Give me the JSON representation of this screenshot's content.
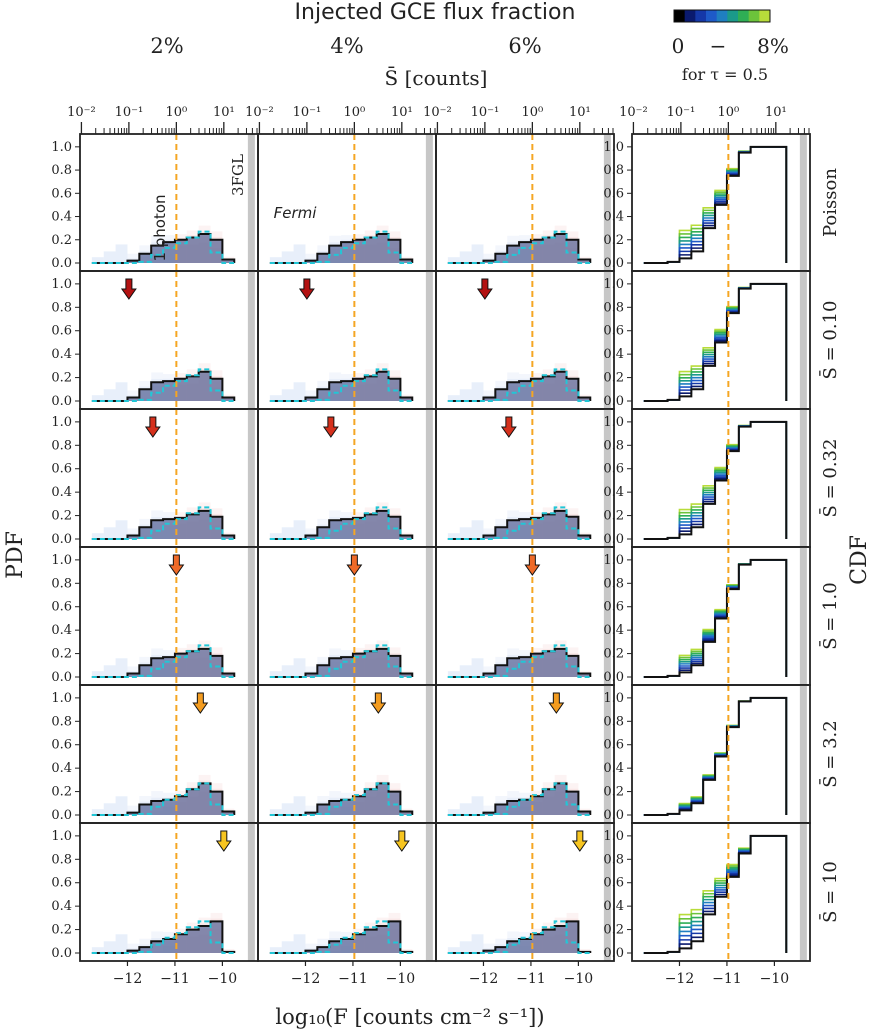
{
  "header": {
    "title": "Injected GCE flux fraction",
    "columns": [
      {
        "label": "2%",
        "color": "#1f3ca0"
      },
      {
        "label": "4%",
        "color": "#2a8a8a"
      },
      {
        "label": "6%",
        "color": "#4caf3a"
      }
    ],
    "colorbar": {
      "min_label": "0",
      "dash": "−",
      "max_label": "8%",
      "note": "for τ = 0.5",
      "colors": [
        "#000000",
        "#0a1a6e",
        "#1538a8",
        "#1e5ac8",
        "#1f7fc0",
        "#1b9a8a",
        "#2fae55",
        "#6cc33b",
        "#b8dc3a"
      ]
    }
  },
  "top_axis": {
    "label": "S̄ [counts]",
    "tick_labels": [
      "10⁻²",
      "10⁻¹",
      "10⁰",
      "10¹"
    ],
    "tick_values": [
      -2,
      -1,
      0,
      1
    ]
  },
  "bottom_axis": {
    "label": "log₁₀(F [counts cm⁻² s⁻¹])",
    "tick_labels": [
      "−12",
      "−11",
      "−10"
    ]
  },
  "left_axis_label": "PDF",
  "right_axis_label": "CDF",
  "annotations": {
    "photon": "1 photon",
    "fgl": "3FGL",
    "fermi": "Fermi"
  },
  "colors": {
    "photon_line": "#f5a623",
    "fermi_line": "#22c6d6",
    "fgl_band": "#bdbdbd",
    "black": "#111111"
  },
  "rows": [
    {
      "label": "Poisson",
      "color": "#111111",
      "s_bar": null
    },
    {
      "label": "S̄ = 0.10",
      "color": "#9e1a1a",
      "s_bar": 0.1,
      "arrow_color": "#b31212"
    },
    {
      "label": "S̄ = 0.32",
      "color": "#c8321e",
      "s_bar": 0.32,
      "arrow_color": "#d5301c"
    },
    {
      "label": "S̄ = 1.0",
      "color": "#e8602a",
      "s_bar": 1.0,
      "arrow_color": "#ef6a28"
    },
    {
      "label": "S̄ = 3.2",
      "color": "#f09a2a",
      "s_bar": 3.2,
      "arrow_color": "#f39c20"
    },
    {
      "label": "S̄ = 10",
      "color": "#f5c431",
      "s_bar": 10,
      "arrow_color": "#f7c520"
    }
  ],
  "chart_data": {
    "type": "grid of step-histograms (PDF) and CDFs",
    "x_range": [
      -13,
      -9.25
    ],
    "y_range": [
      0,
      1.05
    ],
    "y_ticks": [
      "0.0",
      "0.2",
      "0.4",
      "0.6",
      "0.8",
      "1.0"
    ],
    "x_ticks": [
      -12,
      -11,
      -10
    ],
    "one_photon_logF": -10.97,
    "fgl_threshold_logF": -9.4,
    "bin_edges": [
      -12.75,
      -12.5,
      -12.25,
      -12.0,
      -11.75,
      -11.5,
      -11.25,
      -11.0,
      -10.75,
      -10.5,
      -10.25,
      -10.0,
      -9.75
    ],
    "fermi_pdf": [
      0.0,
      0.0,
      0.0,
      0.0,
      0.01,
      0.07,
      0.13,
      0.17,
      0.22,
      0.27,
      0.09,
      0.0
    ],
    "pdf_median": [
      [
        0.0,
        0.0,
        0.0,
        0.02,
        0.08,
        0.15,
        0.18,
        0.2,
        0.22,
        0.25,
        0.2,
        0.03
      ],
      [
        0.0,
        0.0,
        0.0,
        0.03,
        0.1,
        0.16,
        0.17,
        0.19,
        0.21,
        0.25,
        0.19,
        0.03
      ],
      [
        0.0,
        0.0,
        0.0,
        0.03,
        0.1,
        0.16,
        0.17,
        0.18,
        0.21,
        0.24,
        0.19,
        0.03
      ],
      [
        0.0,
        0.0,
        0.0,
        0.03,
        0.1,
        0.16,
        0.17,
        0.2,
        0.22,
        0.24,
        0.18,
        0.03
      ],
      [
        0.0,
        0.0,
        0.0,
        0.02,
        0.09,
        0.12,
        0.13,
        0.16,
        0.22,
        0.27,
        0.2,
        0.03
      ],
      [
        0.0,
        0.0,
        0.0,
        0.02,
        0.05,
        0.1,
        0.12,
        0.16,
        0.2,
        0.23,
        0.27,
        0.01
      ]
    ],
    "cdf_black": [
      [
        0.0,
        0.0,
        0.01,
        0.04,
        0.1,
        0.3,
        0.5,
        0.75,
        0.95,
        1.0,
        1.0,
        1.0
      ],
      [
        0.0,
        0.0,
        0.01,
        0.04,
        0.1,
        0.3,
        0.5,
        0.75,
        0.96,
        1.0,
        1.0,
        1.0
      ],
      [
        0.0,
        0.0,
        0.01,
        0.04,
        0.1,
        0.3,
        0.5,
        0.75,
        0.96,
        1.0,
        1.0,
        1.0
      ],
      [
        0.0,
        0.0,
        0.01,
        0.04,
        0.1,
        0.3,
        0.5,
        0.75,
        0.96,
        1.0,
        1.0,
        1.0
      ],
      [
        0.0,
        0.0,
        0.01,
        0.04,
        0.1,
        0.3,
        0.5,
        0.75,
        0.97,
        1.0,
        1.0,
        1.0
      ],
      [
        0.0,
        0.0,
        0.01,
        0.04,
        0.1,
        0.33,
        0.48,
        0.65,
        0.85,
        1.0,
        1.0,
        1.0
      ]
    ],
    "cdf_color_spread": [
      0.25,
      0.22,
      0.22,
      0.15,
      0.06,
      0.3
    ]
  }
}
